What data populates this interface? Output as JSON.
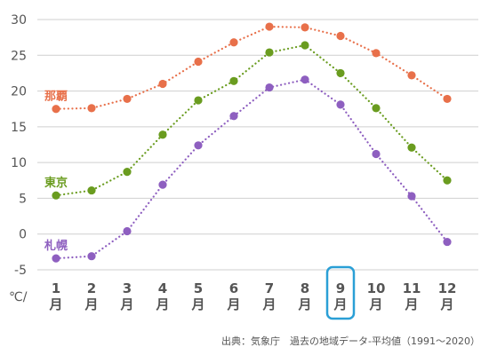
{
  "chart_data": {
    "type": "line",
    "y_unit": "℃/",
    "ylim": [
      -5,
      30
    ],
    "yticks": [
      30,
      25,
      20,
      15,
      10,
      5,
      0,
      -5
    ],
    "categories": [
      "1\n月",
      "2\n月",
      "3\n月",
      "4\n月",
      "5\n月",
      "6\n月",
      "7\n月",
      "8\n月",
      "9\n月",
      "10\n月",
      "11\n月",
      "12\n月"
    ],
    "month_numbers": [
      "1",
      "2",
      "3",
      "4",
      "5",
      "6",
      "7",
      "8",
      "9",
      "10",
      "11",
      "12"
    ],
    "month_suffix": "月",
    "highlight_index": 8,
    "highlight_color": "#2a9fd6",
    "grid": true,
    "series": [
      {
        "name": "那覇",
        "color": "#e8704a",
        "values": [
          17.5,
          17.6,
          18.9,
          21.0,
          24.1,
          26.8,
          29.0,
          28.9,
          27.7,
          25.3,
          22.2,
          18.9
        ]
      },
      {
        "name": "東京",
        "color": "#6a9c1f",
        "values": [
          5.4,
          6.1,
          8.7,
          13.9,
          18.7,
          21.4,
          25.4,
          26.4,
          22.5,
          17.6,
          12.1,
          7.5
        ]
      },
      {
        "name": "札幌",
        "color": "#8e5fc0",
        "values": [
          -3.4,
          -3.1,
          0.4,
          6.9,
          12.4,
          16.5,
          20.5,
          21.6,
          18.1,
          11.2,
          5.3,
          -1.1
        ]
      }
    ],
    "source": "出典：気象庁　過去の地域データ-平均値（1991〜2020）"
  }
}
